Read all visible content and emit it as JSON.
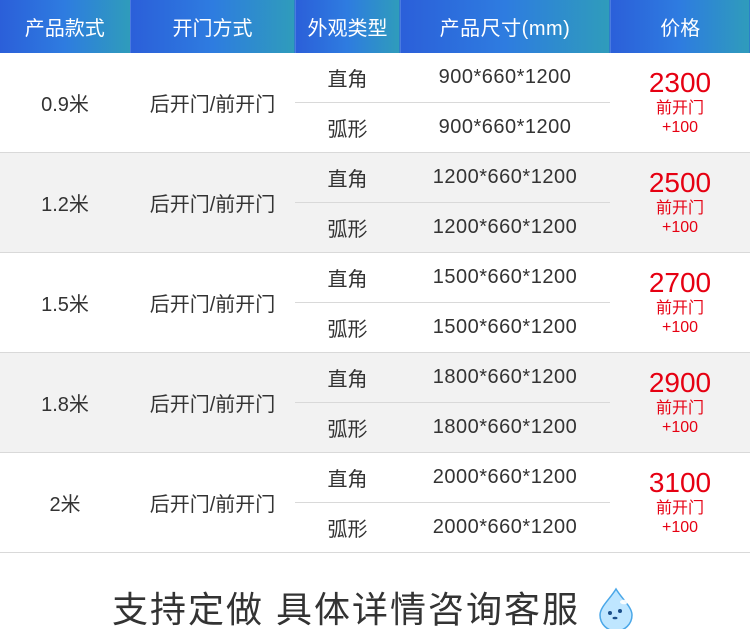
{
  "colors": {
    "header_bg_from": "#2b5fd9",
    "header_bg_to": "#2f9cbb",
    "header_text": "#ffffff",
    "body_text": "#333333",
    "open_text": "#8a8a8a",
    "price_text": "#e60012",
    "alt_row_bg": "#f2f2f2",
    "border": "#d9d9d9"
  },
  "headers": {
    "style": "产品款式",
    "open": "开门方式",
    "type": "外观类型",
    "dim": "产品尺寸(mm)",
    "price": "价格"
  },
  "type_labels": {
    "right": "直角",
    "arc": "弧形"
  },
  "open_label": "后开门/前开门",
  "price_sub1": "前开门",
  "price_sub2": "+100",
  "rows": [
    {
      "style": "0.9米",
      "dim_right": "900*660*1200",
      "dim_arc": "900*660*1200",
      "price": "2300",
      "alt": false
    },
    {
      "style": "1.2米",
      "dim_right": "1200*660*1200",
      "dim_arc": "1200*660*1200",
      "price": "2500",
      "alt": true
    },
    {
      "style": "1.5米",
      "dim_right": "1500*660*1200",
      "dim_arc": "1500*660*1200",
      "price": "2700",
      "alt": false
    },
    {
      "style": "1.8米",
      "dim_right": "1800*660*1200",
      "dim_arc": "1800*660*1200",
      "price": "2900",
      "alt": true
    },
    {
      "style": "2米",
      "dim_right": "2000*660*1200",
      "dim_arc": "2000*660*1200",
      "price": "3100",
      "alt": false
    }
  ],
  "footer": "支持定做 具体详情咨询客服"
}
